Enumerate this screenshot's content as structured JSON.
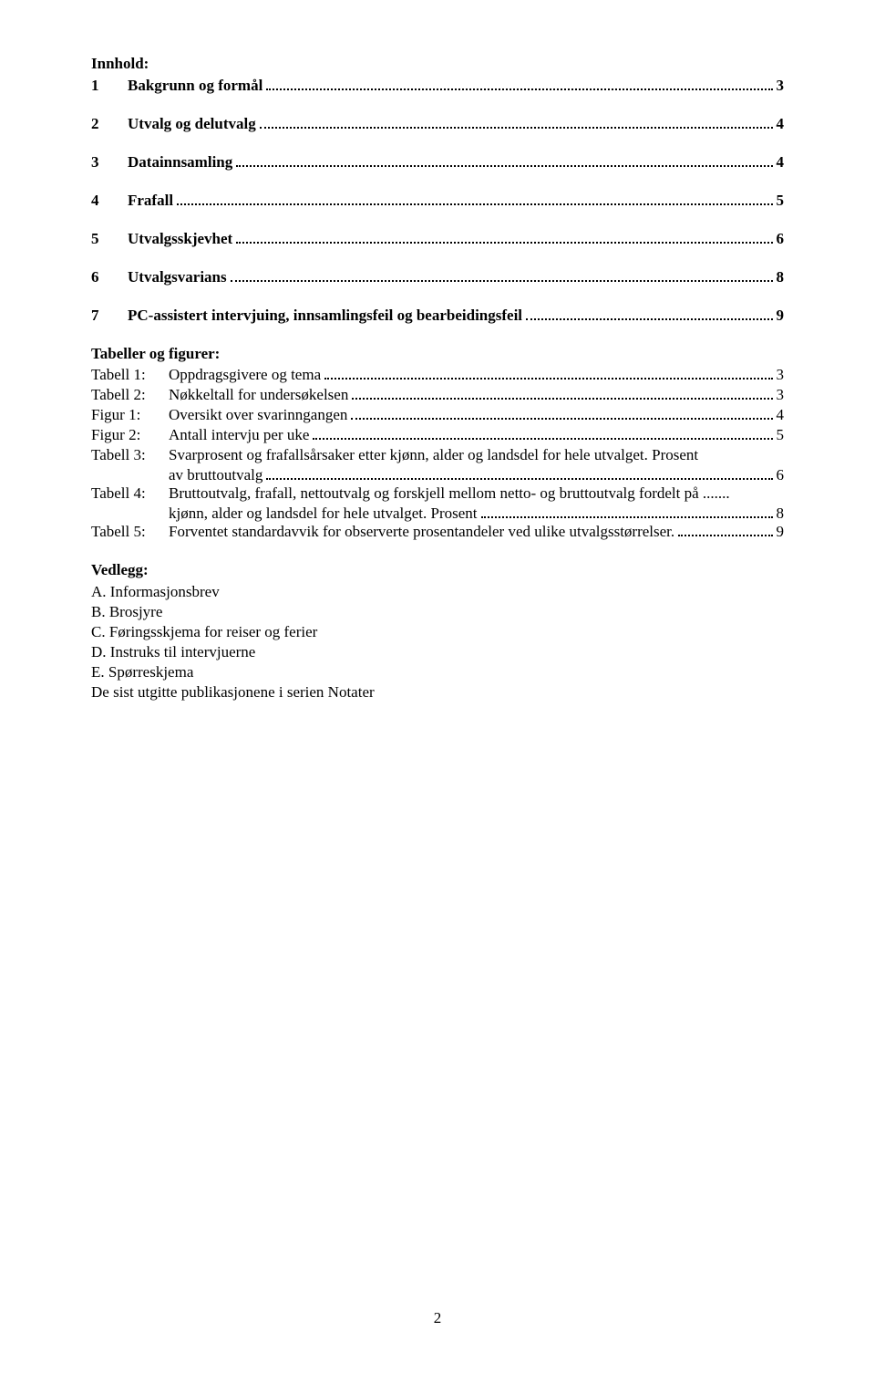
{
  "heading_innhold": "Innhold:",
  "toc": [
    {
      "num": "1",
      "label": "Bakgrunn og formål",
      "pg": "3"
    },
    {
      "num": "2",
      "label": "Utvalg og delutvalg",
      "pg": "4"
    },
    {
      "num": "3",
      "label": "Datainnsamling",
      "pg": "4"
    },
    {
      "num": "4",
      "label": "Frafall",
      "pg": "5"
    },
    {
      "num": "5",
      "label": "Utvalgsskjevhet",
      "pg": "6"
    },
    {
      "num": "6",
      "label": "Utvalgsvarians",
      "pg": "8"
    },
    {
      "num": "7",
      "label": "PC-assistert intervjuing, innsamlingsfeil og bearbeidingsfeil",
      "pg": "9"
    }
  ],
  "heading_tabeller": "Tabeller og figurer:",
  "entries": {
    "t1": {
      "prefix": "Tabell 1:",
      "label": "Oppdragsgivere og tema",
      "pg": "3"
    },
    "t2": {
      "prefix": "Tabell 2:",
      "label": "Nøkkeltall for undersøkelsen",
      "pg": "3"
    },
    "f1": {
      "prefix": "Figur 1:",
      "label": "Oversikt over svarinngangen",
      "pg": "4"
    },
    "f2": {
      "prefix": "Figur 2:",
      "label": "Antall intervju per uke",
      "pg": "5"
    },
    "t3a": {
      "prefix": "Tabell 3:",
      "label": "Svarprosent og frafallsårsaker etter kjønn, alder og landsdel for hele utvalget. Prosent"
    },
    "t3b": {
      "label": "av bruttoutvalg",
      "pg": "6"
    },
    "t4a": {
      "prefix": "Tabell 4:",
      "label": "Bruttoutvalg, frafall, nettoutvalg og forskjell mellom netto- og bruttoutvalg fordelt på ......."
    },
    "t4b": {
      "label": "kjønn, alder og landsdel for hele utvalget. Prosent",
      "pg": "8"
    },
    "t5": {
      "prefix": "Tabell 5:",
      "label": "Forventet standardavvik for observerte prosentandeler ved ulike utvalgsstørrelser. ",
      "pg": "9"
    }
  },
  "heading_vedlegg": "Vedlegg:",
  "vedlegg": [
    "A. Informasjonsbrev",
    "B. Brosjyre",
    "C. Føringsskjema for reiser og ferier",
    "D. Instruks til intervjuerne",
    "E. Spørreskjema",
    "De sist utgitte publikasjonene i serien Notater"
  ],
  "page_number": "2"
}
